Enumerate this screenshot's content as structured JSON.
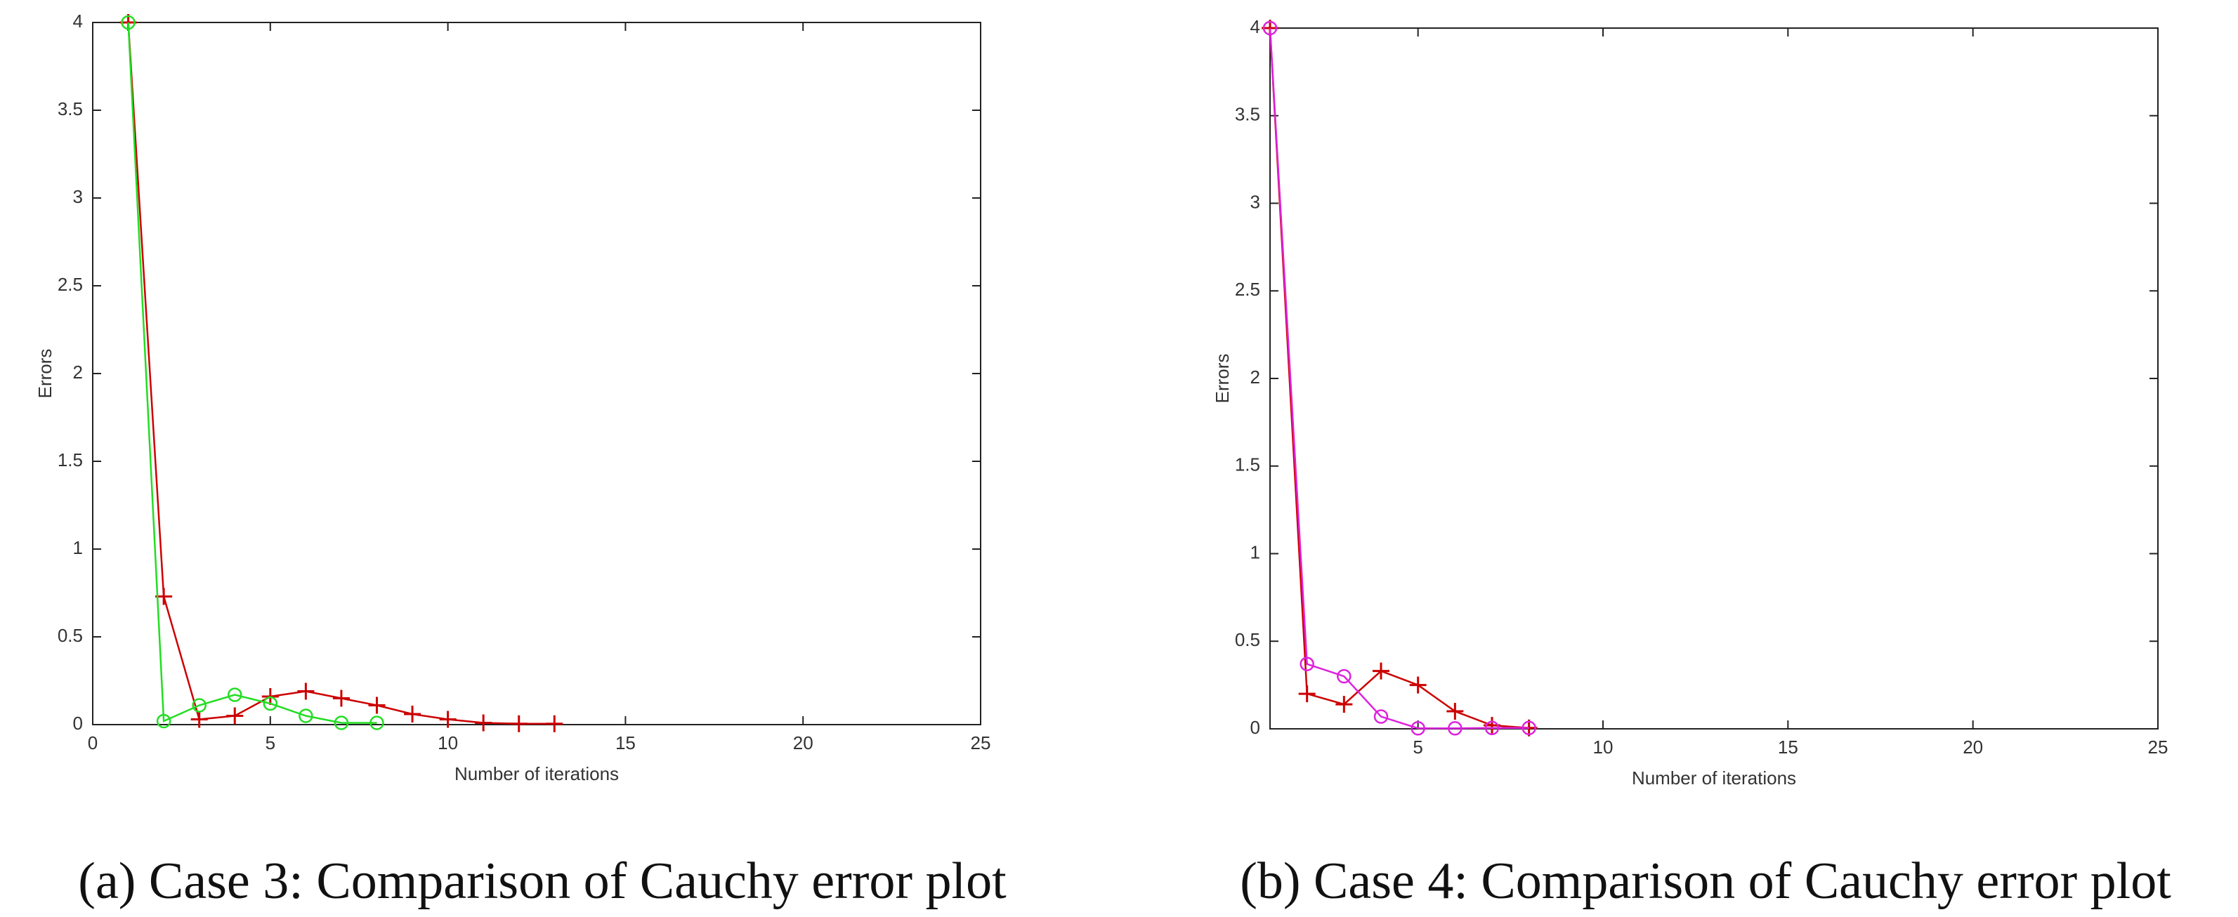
{
  "chart_data": [
    {
      "type": "line",
      "caption": "(a) Case 3: Comparison of Cauchy error plot",
      "xlabel": "Number of iterations",
      "ylabel": "Errors",
      "xlim": [
        0,
        25
      ],
      "xticks": [
        0,
        5,
        10,
        15,
        20,
        25
      ],
      "ylim": [
        0,
        4
      ],
      "yticks": [
        0,
        0.5,
        1,
        1.5,
        2,
        2.5,
        3,
        3.5,
        4
      ],
      "series": [
        {
          "color": "#cc0000",
          "marker": "+",
          "x": [
            1,
            2,
            3,
            4,
            5,
            6,
            7,
            8,
            9,
            10,
            11,
            12,
            13
          ],
          "values": [
            4,
            0.73,
            0.03,
            0.05,
            0.16,
            0.19,
            0.15,
            0.11,
            0.06,
            0.03,
            0.01,
            0.005,
            0.005
          ]
        },
        {
          "color": "#22dd22",
          "marker": "o",
          "x": [
            1,
            2,
            3,
            4,
            5,
            6,
            7,
            8
          ],
          "values": [
            4,
            0.02,
            0.11,
            0.17,
            0.12,
            0.05,
            0.01,
            0.01
          ]
        }
      ]
    },
    {
      "type": "line",
      "caption": "(b) Case 4: Comparison of Cauchy error plot",
      "xlabel": "Number of iterations",
      "ylabel": "Errors",
      "xlim": [
        1,
        25
      ],
      "xticks": [
        5,
        10,
        15,
        20,
        25
      ],
      "ylim": [
        0,
        4
      ],
      "yticks": [
        0,
        0.5,
        1,
        1.5,
        2,
        2.5,
        3,
        3.5,
        4
      ],
      "series": [
        {
          "color": "#cc0000",
          "marker": "+",
          "x": [
            1,
            2,
            3,
            4,
            5,
            6,
            7,
            8
          ],
          "values": [
            4,
            0.2,
            0.14,
            0.33,
            0.25,
            0.1,
            0.02,
            0.005
          ]
        },
        {
          "color": "#dd22dd",
          "marker": "o",
          "x": [
            1,
            2,
            3,
            4,
            5,
            6,
            7,
            8
          ],
          "values": [
            4,
            0.37,
            0.3,
            0.07,
            0.003,
            0.003,
            0.005,
            0.005
          ]
        }
      ]
    }
  ]
}
